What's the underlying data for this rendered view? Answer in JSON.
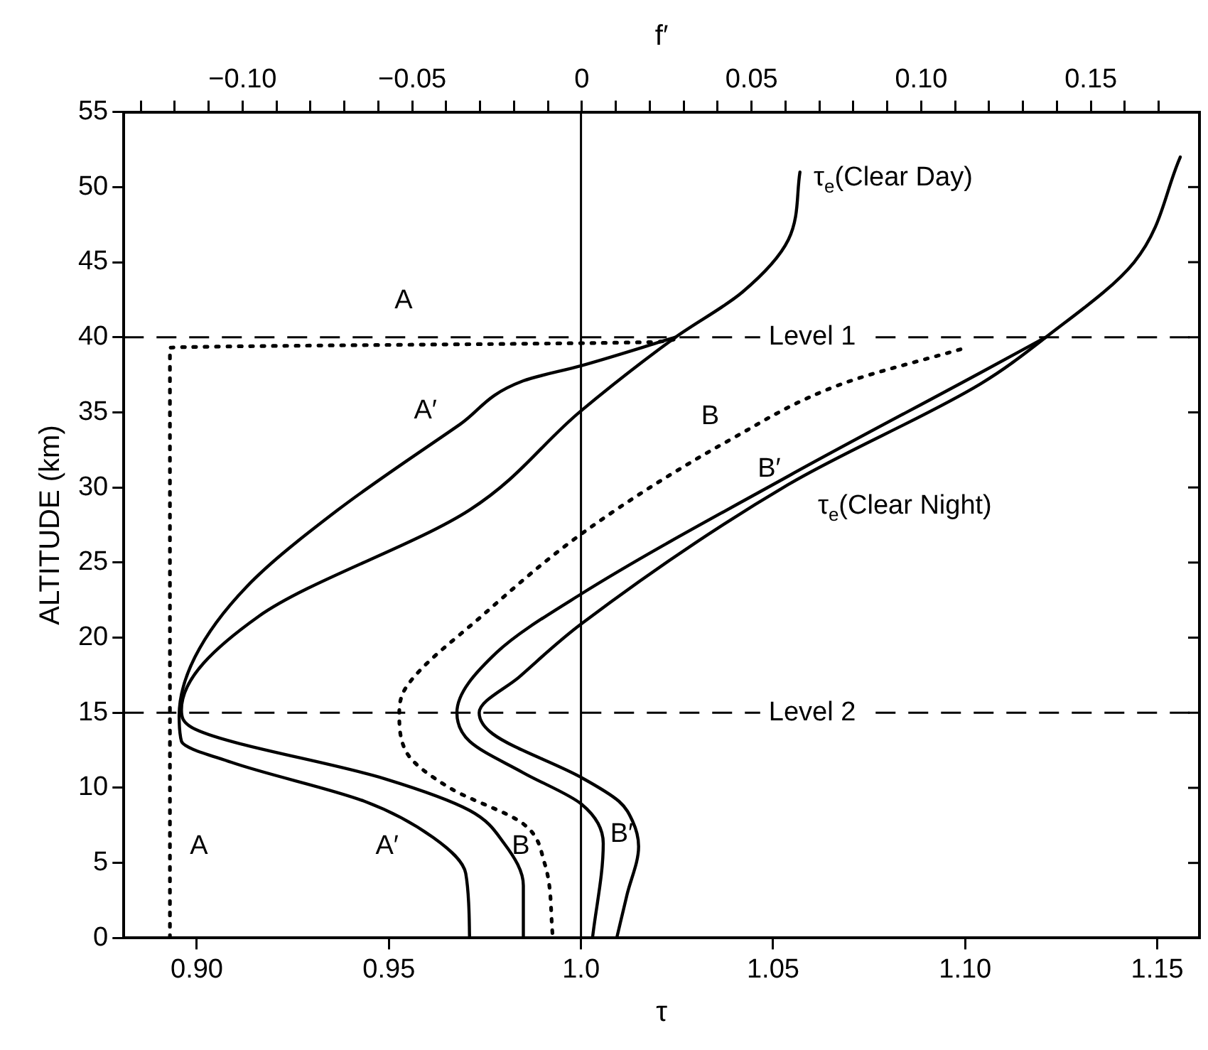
{
  "chart_data": {
    "type": "line",
    "xlabel": "τ",
    "x2label": "f′",
    "ylabel": "ALTITUDE (km)",
    "xlim": [
      0.881,
      1.161
    ],
    "xticks": [
      {
        "value": 0.9,
        "label": "0.90"
      },
      {
        "value": 0.95,
        "label": "0.95"
      },
      {
        "value": 1.0,
        "label": "1.0"
      },
      {
        "value": 1.05,
        "label": "1.05"
      },
      {
        "value": 1.1,
        "label": "1.10"
      },
      {
        "value": 1.15,
        "label": "1.15"
      }
    ],
    "x2lim": [
      -0.135,
      0.182
    ],
    "x2ticks": [
      {
        "value": -0.13,
        "label": null
      },
      {
        "value": -0.12,
        "label": null
      },
      {
        "value": -0.11,
        "label": null
      },
      {
        "value": -0.1,
        "label": "−0.10"
      },
      {
        "value": -0.09,
        "label": null
      },
      {
        "value": -0.08,
        "label": null
      },
      {
        "value": -0.07,
        "label": null
      },
      {
        "value": -0.06,
        "label": null
      },
      {
        "value": -0.05,
        "label": "−0.05"
      },
      {
        "value": -0.04,
        "label": null
      },
      {
        "value": -0.03,
        "label": null
      },
      {
        "value": -0.02,
        "label": null
      },
      {
        "value": -0.01,
        "label": null
      },
      0,
      {
        "value": 0.01,
        "label": null
      },
      {
        "value": 0.02,
        "label": null
      },
      {
        "value": 0.03,
        "label": null
      },
      {
        "value": 0.04,
        "label": null
      },
      {
        "value": 0.05,
        "label": "0.05"
      },
      {
        "value": 0.06,
        "label": null
      },
      {
        "value": 0.07,
        "label": null
      },
      {
        "value": 0.08,
        "label": null
      },
      {
        "value": 0.09,
        "label": null
      },
      {
        "value": 0.1,
        "label": "0.10"
      },
      {
        "value": 0.11,
        "label": null
      },
      {
        "value": 0.12,
        "label": null
      },
      {
        "value": 0.13,
        "label": null
      },
      {
        "value": 0.14,
        "label": null
      },
      {
        "value": 0.15,
        "label": "0.15"
      },
      {
        "value": 0.16,
        "label": null
      },
      {
        "value": 0.17,
        "label": null
      }
    ],
    "ylim": [
      0,
      55
    ],
    "yticks": [
      0,
      5,
      10,
      15,
      20,
      25,
      30,
      35,
      40,
      45,
      50,
      55
    ],
    "marker": "none",
    "legend": false,
    "grid": false,
    "ref_lines": [
      {
        "axis": "x",
        "value": 1.0,
        "line_style": "solid"
      },
      {
        "axis": "y",
        "value": 40,
        "label": "Level 1",
        "line_style": "dashed"
      },
      {
        "axis": "y",
        "value": 15,
        "label": "Level 2",
        "line_style": "dashed"
      }
    ],
    "series": [
      {
        "name": "τ$_{e}$(Clear Day)",
        "color": "#000000",
        "line_style": "solid",
        "x": [
          1.057,
          1.054,
          1.042,
          1.0246,
          1.0,
          0.971,
          0.916,
          0.896,
          0.8996,
          0.949,
          0.971,
          0.98,
          0.985,
          0.985
        ],
        "values": [
          51,
          46.5,
          43,
          40,
          35.1,
          28.5,
          21.4,
          15.2,
          13.9,
          10.6,
          8.5,
          6.3,
          3.5,
          0
        ]
      },
      {
        "name": "τ$_{e}$(Clear Night)",
        "color": "#000000",
        "line_style": "solid",
        "x": [
          1.156,
          1.144,
          1.121,
          1.104,
          1.054,
          1.0,
          0.984,
          0.9735,
          0.977,
          1.0,
          1.0099,
          1.0134,
          1.015,
          1.012,
          1.0093
        ],
        "values": [
          52,
          45,
          40,
          36.9,
          30.2,
          20.9,
          17.4,
          15,
          13.6,
          10.7,
          9.1,
          7.8,
          6.1,
          2.9,
          0
        ]
      },
      {
        "name": "A",
        "color": "#000000",
        "line_style": "dotted",
        "x": [
          0.893,
          0.893,
          1.02,
          1.025
        ],
        "values": [
          0,
          39.3,
          39.7,
          40
        ]
      },
      {
        "name": "A′",
        "color": "#000000",
        "line_style": "solid",
        "x": [
          1.0246,
          1.0,
          0.985,
          0.9685,
          0.9367,
          0.913,
          0.8995,
          0.8954,
          0.896,
          0.909,
          0.9437,
          0.9615,
          0.97,
          0.971
        ],
        "values": [
          40,
          38.1,
          37.1,
          34.2,
          28.5,
          23.4,
          18.7,
          14.8,
          13.1,
          11.7,
          9.1,
          6.7,
          4.3,
          0
        ]
      },
      {
        "name": "B",
        "color": "#000000",
        "line_style": "dotted",
        "x": [
          1.0988,
          1.068,
          1.039,
          1.0017,
          0.974,
          0.9545,
          0.9527,
          0.9545,
          0.9658,
          0.985,
          0.9905,
          0.9927
        ],
        "values": [
          39.2,
          36.9,
          33.2,
          27.2,
          21.4,
          16.7,
          15,
          12.4,
          10,
          7.6,
          5,
          0
        ]
      },
      {
        "name": "B′",
        "color": "#000000",
        "line_style": "solid",
        "x": [
          1.121,
          1.1037,
          1.0543,
          1.0,
          0.978,
          0.9677,
          0.971,
          0.985,
          1.0002,
          1.0058,
          1.003
        ],
        "values": [
          40,
          37.6,
          30.8,
          22.9,
          19,
          15,
          13.1,
          11,
          8.9,
          6.3,
          0
        ]
      }
    ]
  }
}
